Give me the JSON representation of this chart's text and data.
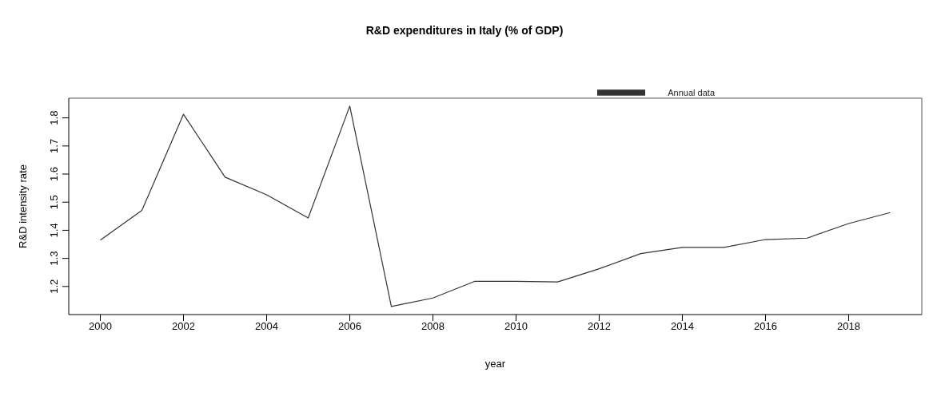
{
  "chart_data": {
    "type": "line",
    "title": "R&D expenditures in Italy (% of GDP)",
    "xlabel": "year",
    "ylabel": "R&D intensity rate",
    "x": [
      2000,
      2001,
      2002,
      2003,
      2004,
      2005,
      2006,
      2007,
      2008,
      2009,
      2010,
      2011,
      2012,
      2013,
      2014,
      2015,
      2016,
      2017,
      2018,
      2019
    ],
    "series": [
      {
        "name": "Annual data",
        "color": "#333333",
        "values": [
          1.365,
          1.471,
          1.813,
          1.589,
          1.526,
          1.444,
          1.842,
          1.129,
          1.159,
          1.218,
          1.218,
          1.216,
          1.263,
          1.317,
          1.339,
          1.339,
          1.367,
          1.372,
          1.424,
          1.463
        ]
      }
    ],
    "xlim": [
      1999.24,
      2019.76
    ],
    "xticks": [
      2000,
      2002,
      2004,
      2006,
      2008,
      2010,
      2012,
      2014,
      2016,
      2018
    ],
    "ylim": [
      1.1,
      1.87
    ],
    "yticks": [
      1.2,
      1.3,
      1.4,
      1.5,
      1.6,
      1.7,
      1.8
    ],
    "grid": false,
    "legend": "top right",
    "marker": "none",
    "line_style": "solid"
  }
}
